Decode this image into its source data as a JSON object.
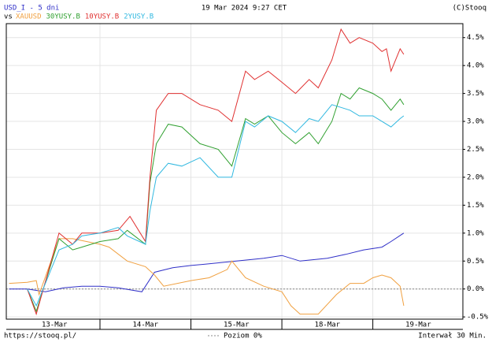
{
  "chart_data": {
    "type": "line",
    "timestamp": "19 Mar 2024 9:27 CET",
    "copyright": "(C)Stooq",
    "vs_label": "vs",
    "source": "https://stooq.pl/",
    "zero_line_label": "Poziom 0%",
    "interval": "Interwał 30 Min.",
    "xlim": [
      -0.03,
      4.99
    ],
    "xticks": [
      {
        "value": 0.5,
        "label": "13-Mar"
      },
      {
        "value": 1.5,
        "label": "14-Mar"
      },
      {
        "value": 2.5,
        "label": "15-Mar"
      },
      {
        "value": 3.5,
        "label": "18-Mar"
      },
      {
        "value": 4.5,
        "label": "19-Mar"
      }
    ],
    "ylim": [
      -0.54,
      4.75
    ],
    "yticks": [
      {
        "value": -0.5,
        "label": "-0.5%"
      },
      {
        "value": 0,
        "label": "0.0%"
      },
      {
        "value": 0.5,
        "label": "0.5%"
      },
      {
        "value": 1,
        "label": "1.0%"
      },
      {
        "value": 1.5,
        "label": "1.5%"
      },
      {
        "value": 2,
        "label": "2.0%"
      },
      {
        "value": 2.5,
        "label": "2.5%"
      },
      {
        "value": 3,
        "label": "3.0%"
      },
      {
        "value": 3.5,
        "label": "3.5%"
      },
      {
        "value": 4,
        "label": "4.0%"
      },
      {
        "value": 4.5,
        "label": "4.5%"
      }
    ],
    "grid": true,
    "series": [
      {
        "name": "USD_I - 5 dni",
        "color": "#3030c8",
        "x": [
          0,
          0.2,
          0.4,
          0.6,
          0.8,
          1.0,
          1.2,
          1.46,
          1.6,
          1.8,
          2.0,
          2.2,
          2.5,
          2.8,
          3.0,
          3.2,
          3.5,
          3.7,
          3.9,
          4.1,
          4.2,
          4.34
        ],
        "values": [
          0,
          0,
          -0.05,
          0.02,
          0.05,
          0.05,
          0.02,
          -0.05,
          0.3,
          0.38,
          0.42,
          0.45,
          0.5,
          0.55,
          0.6,
          0.5,
          0.55,
          0.62,
          0.7,
          0.75,
          0.85,
          1.0
        ]
      },
      {
        "name": "XAUUSD",
        "color": "#f0a040",
        "x": [
          0,
          0.2,
          0.3,
          0.33,
          0.55,
          0.7,
          1.0,
          1.1,
          1.3,
          1.5,
          1.6,
          1.7,
          2.0,
          2.2,
          2.4,
          2.45,
          2.6,
          2.8,
          3.0,
          3.1,
          3.2,
          3.4,
          3.6,
          3.75,
          3.9,
          4.0,
          4.1,
          4.2,
          4.3,
          4.34
        ],
        "values": [
          0.1,
          0.12,
          0.15,
          -0.1,
          0.9,
          0.9,
          0.8,
          0.75,
          0.5,
          0.4,
          0.25,
          0.05,
          0.15,
          0.2,
          0.35,
          0.5,
          0.2,
          0.05,
          -0.05,
          -0.3,
          -0.45,
          -0.45,
          -0.1,
          0.1,
          0.1,
          0.2,
          0.25,
          0.2,
          0.05,
          -0.3
        ]
      },
      {
        "name": "30YUSY.B",
        "color": "#30a030",
        "x": [
          0.2,
          0.3,
          0.55,
          0.7,
          0.8,
          1.0,
          1.2,
          1.3,
          1.5,
          1.55,
          1.62,
          1.75,
          1.9,
          2.1,
          2.3,
          2.45,
          2.6,
          2.7,
          2.85,
          3.0,
          3.15,
          3.3,
          3.4,
          3.55,
          3.65,
          3.75,
          3.85,
          4.0,
          4.1,
          4.2,
          4.3,
          4.34
        ],
        "values": [
          0,
          -0.4,
          0.9,
          0.7,
          0.75,
          0.85,
          0.9,
          1.05,
          0.8,
          1.9,
          2.6,
          2.95,
          2.9,
          2.6,
          2.5,
          2.2,
          3.05,
          2.95,
          3.1,
          2.8,
          2.6,
          2.8,
          2.6,
          3.0,
          3.5,
          3.4,
          3.6,
          3.5,
          3.4,
          3.2,
          3.4,
          3.3
        ]
      },
      {
        "name": "10YUSY.B",
        "color": "#e03030",
        "x": [
          0.2,
          0.3,
          0.55,
          0.7,
          0.8,
          1.0,
          1.2,
          1.33,
          1.5,
          1.55,
          1.62,
          1.75,
          1.9,
          2.1,
          2.3,
          2.45,
          2.6,
          2.7,
          2.85,
          3.0,
          3.15,
          3.3,
          3.4,
          3.55,
          3.65,
          3.75,
          3.85,
          4.0,
          4.1,
          4.15,
          4.2,
          4.3,
          4.34
        ],
        "values": [
          0,
          -0.45,
          1.0,
          0.8,
          1.0,
          1.0,
          1.05,
          1.3,
          0.85,
          2.0,
          3.2,
          3.5,
          3.5,
          3.3,
          3.2,
          3.0,
          3.9,
          3.75,
          3.9,
          3.7,
          3.5,
          3.75,
          3.6,
          4.1,
          4.65,
          4.4,
          4.5,
          4.4,
          4.25,
          4.3,
          3.9,
          4.3,
          4.2
        ]
      },
      {
        "name": "2YUSY.B",
        "color": "#30b8e0",
        "x": [
          0.2,
          0.3,
          0.55,
          0.7,
          0.8,
          1.0,
          1.2,
          1.3,
          1.5,
          1.55,
          1.62,
          1.75,
          1.9,
          2.1,
          2.3,
          2.45,
          2.6,
          2.7,
          2.85,
          3.0,
          3.15,
          3.3,
          3.4,
          3.55,
          3.65,
          3.75,
          3.85,
          4.0,
          4.1,
          4.2,
          4.3,
          4.34
        ],
        "values": [
          0,
          -0.3,
          0.7,
          0.8,
          0.95,
          1.0,
          1.1,
          0.95,
          0.8,
          1.4,
          2.0,
          2.25,
          2.2,
          2.35,
          2.0,
          2.0,
          3.0,
          2.9,
          3.1,
          3.0,
          2.8,
          3.05,
          3.0,
          3.3,
          3.25,
          3.2,
          3.1,
          3.1,
          3.0,
          2.9,
          3.05,
          3.1
        ]
      }
    ]
  }
}
